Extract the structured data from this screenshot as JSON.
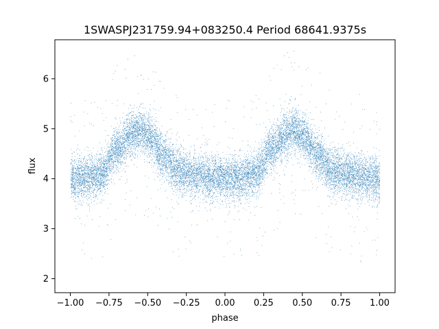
{
  "chart_data": {
    "type": "scatter",
    "title": "1SWASPJ231759.94+083250.4 Period 68641.9375s",
    "xlabel": "phase",
    "ylabel": "flux",
    "xlim": [
      -1.1,
      1.1
    ],
    "ylim": [
      1.72,
      6.78
    ],
    "xticks": [
      -1.0,
      -0.75,
      -0.5,
      -0.25,
      0.0,
      0.25,
      0.5,
      0.75,
      1.0
    ],
    "xtick_labels": [
      "−1.00",
      "−0.75",
      "−0.50",
      "−0.25",
      "0.00",
      "0.25",
      "0.50",
      "0.75",
      "1.00"
    ],
    "yticks": [
      2,
      3,
      4,
      5,
      6
    ],
    "ytick_labels": [
      "2",
      "3",
      "4",
      "5",
      "6"
    ],
    "grid": false,
    "marker_color": "#1f77b4",
    "series": [
      {
        "profile": {
          "x": [
            -1.0,
            -0.9,
            -0.8,
            -0.7,
            -0.6,
            -0.55,
            -0.5,
            -0.4,
            -0.3,
            -0.2,
            -0.1,
            0.0,
            0.1,
            0.2,
            0.3,
            0.4,
            0.45,
            0.5,
            0.6,
            0.7,
            0.8,
            0.9,
            1.0
          ],
          "y": [
            4.0,
            4.02,
            4.1,
            4.6,
            4.92,
            4.98,
            4.85,
            4.45,
            4.15,
            4.08,
            4.03,
            4.0,
            4.02,
            4.12,
            4.6,
            4.9,
            4.98,
            4.85,
            4.45,
            4.15,
            4.08,
            4.02,
            4.0
          ]
        },
        "scatter_sd": 0.22,
        "point_count": 14000
      }
    ]
  }
}
